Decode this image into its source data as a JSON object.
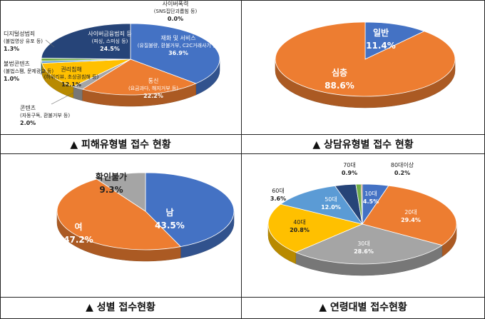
{
  "chart_data": [
    {
      "type": "pie",
      "caption": "▲ 피해유형별 접수 현황",
      "slices": [
        {
          "label": "재화 및 서비스",
          "sub": "(유질불량, 환불거부, C2C거래사기 등)",
          "pct": "36.9%",
          "value": 36.9,
          "color": "#4472C4"
        },
        {
          "label": "통신",
          "sub": "(요금과다, 해지거부 등)",
          "pct": "22.2%",
          "value": 22.2,
          "color": "#ED7D31"
        },
        {
          "label": "콘텐츠",
          "sub": "(자동구독, 환불거부 등)",
          "pct": "2.0%",
          "value": 2.0,
          "color": "#A5A5A5"
        },
        {
          "label": "권리침해",
          "sub": "(허위리뷰, 초상권침해 등)",
          "pct": "12.1%",
          "value": 12.1,
          "color": "#FFC000"
        },
        {
          "label": "불법콘텐츠",
          "sub": "(불법스팸, 문제광고 등)",
          "pct": "1.0%",
          "value": 1.0,
          "color": "#5B9BD5"
        },
        {
          "label": "디지털성범죄",
          "sub": "(불법영상 유포 등)",
          "pct": "1.3%",
          "value": 1.3,
          "color": "#70AD47"
        },
        {
          "label": "사이버금융범죄 등",
          "sub": "(피싱, 스미싱 등)",
          "pct": "24.5%",
          "value": 24.5,
          "color": "#264478"
        },
        {
          "label": "사이버폭력",
          "sub": "(SNS집단괴롭힘 등)",
          "pct": "0.0%",
          "value": 0.0,
          "color": "#9E480E"
        }
      ]
    },
    {
      "type": "pie",
      "caption": "▲ 상담유형별 접수 현황",
      "slices": [
        {
          "label": "일반",
          "pct": "11.4%",
          "value": 11.4,
          "color": "#4472C4"
        },
        {
          "label": "심층",
          "pct": "88.6%",
          "value": 88.6,
          "color": "#ED7D31"
        }
      ]
    },
    {
      "type": "pie",
      "caption": "▲ 성별 접수현황",
      "slices": [
        {
          "label": "남",
          "pct": "43.5%",
          "value": 43.5,
          "color": "#4472C4"
        },
        {
          "label": "여",
          "pct": "47.2%",
          "value": 47.2,
          "color": "#ED7D31"
        },
        {
          "label": "확인불가",
          "pct": "9.3%",
          "value": 9.3,
          "color": "#A5A5A5"
        }
      ]
    },
    {
      "type": "pie",
      "caption": "▲ 연령대별 접수현황",
      "slices": [
        {
          "label": "10대",
          "pct": "4.5%",
          "value": 4.5,
          "color": "#4472C4"
        },
        {
          "label": "20대",
          "pct": "29.4%",
          "value": 29.4,
          "color": "#ED7D31"
        },
        {
          "label": "30대",
          "pct": "28.6%",
          "value": 28.6,
          "color": "#A5A5A5"
        },
        {
          "label": "40대",
          "pct": "20.8%",
          "value": 20.8,
          "color": "#FFC000"
        },
        {
          "label": "50대",
          "pct": "12.0%",
          "value": 12.0,
          "color": "#5B9BD5"
        },
        {
          "label": "60대",
          "pct": "3.6%",
          "value": 3.6,
          "color": "#264478"
        },
        {
          "label": "70대",
          "pct": "0.9%",
          "value": 0.9,
          "color": "#70AD47"
        },
        {
          "label": "80대이상",
          "pct": "0.2%",
          "value": 0.2,
          "color": "#9E480E"
        }
      ]
    }
  ]
}
